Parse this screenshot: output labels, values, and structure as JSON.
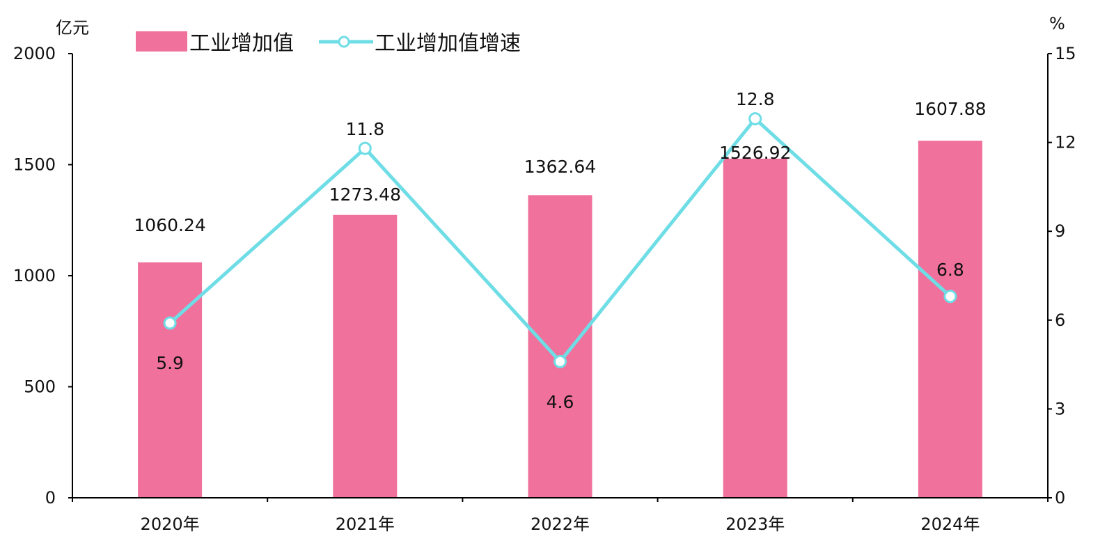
{
  "chart_data": {
    "type": "bar",
    "categories": [
      "2020年",
      "2021年",
      "2022年",
      "2023年",
      "2024年"
    ],
    "series": [
      {
        "name": "工业增加值",
        "type": "bar",
        "axis": "left",
        "color": "#F0719B",
        "values": [
          1060.24,
          1273.48,
          1362.64,
          1526.92,
          1607.88
        ],
        "labels": [
          "1060.24",
          "1273.48",
          "1362.64",
          "1526.92",
          "1607.88"
        ]
      },
      {
        "name": "工业增加值增速",
        "type": "line",
        "axis": "right",
        "color": "#6FDDE6",
        "values": [
          5.9,
          11.8,
          4.6,
          12.8,
          6.8
        ],
        "labels": [
          "5.9",
          "11.8",
          "4.6",
          "12.8",
          "6.8"
        ]
      }
    ],
    "left_axis": {
      "unit": "亿元",
      "ylim": [
        0,
        2000
      ],
      "ticks": [
        0,
        500,
        1000,
        1500,
        2000
      ],
      "tick_labels": [
        "0",
        "500",
        "1000",
        "1500",
        "2000"
      ]
    },
    "right_axis": {
      "unit": "%",
      "ylim": [
        0,
        15
      ],
      "ticks": [
        0,
        3,
        6,
        9,
        12,
        15
      ],
      "tick_labels": [
        "0",
        "3",
        "6",
        "9",
        "12",
        "15"
      ]
    },
    "grid": false,
    "legend_position": "top-left"
  }
}
